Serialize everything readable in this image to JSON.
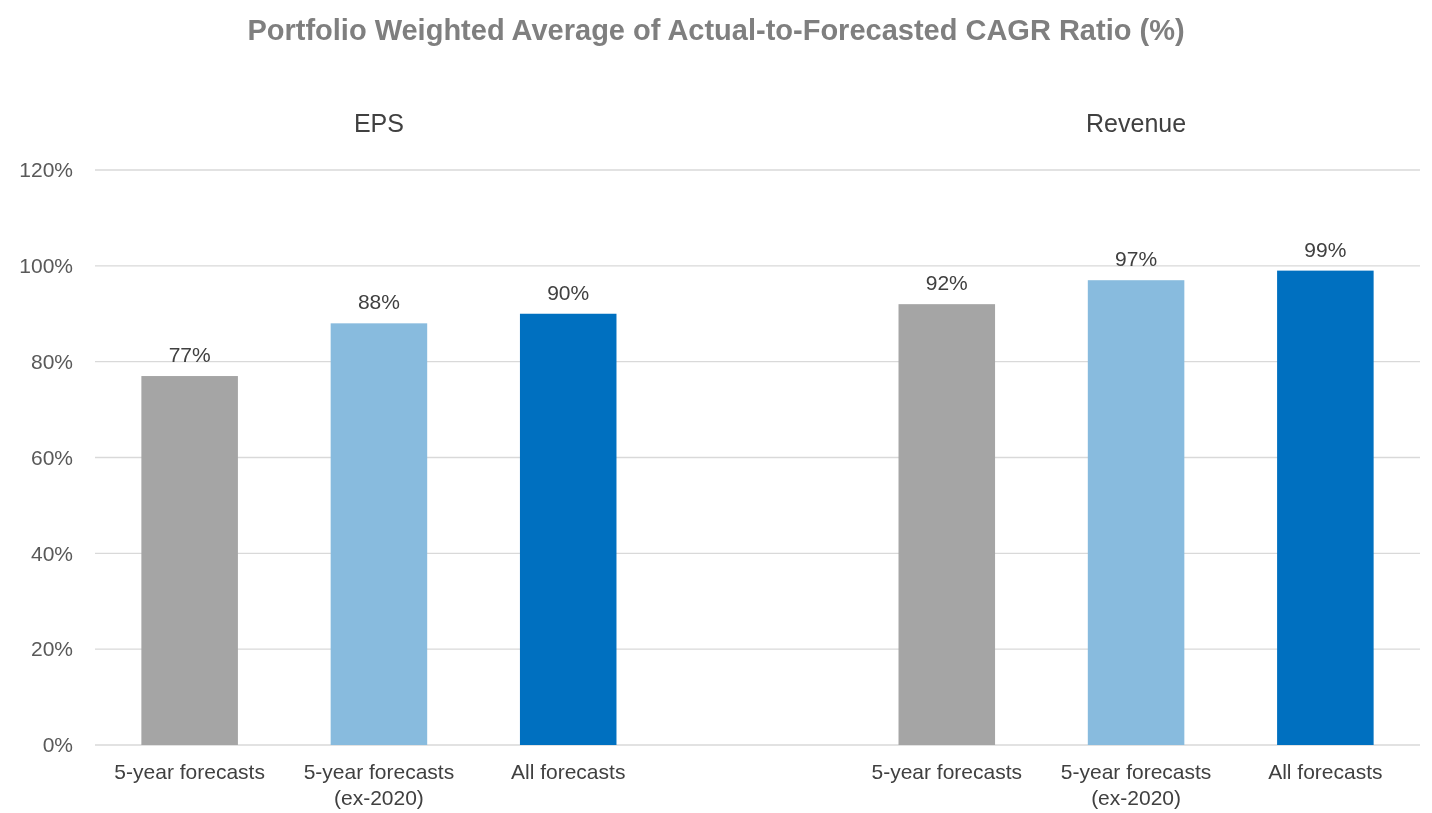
{
  "chart_data": {
    "type": "bar",
    "title": "Portfolio Weighted Average of Actual-to-Forecasted CAGR Ratio (%)",
    "annotations": [
      "EPS",
      "Revenue"
    ],
    "categories": [
      "5-year forecasts",
      "5-year forecasts (ex-2020)",
      "All forecasts",
      null,
      "5-year forecasts",
      "5-year forecasts (ex-2020)",
      "All forecasts"
    ],
    "values": [
      77,
      88,
      90,
      null,
      92,
      97,
      99
    ],
    "colors": [
      "#a5a5a5",
      "#88bbde",
      "#0070c0",
      null,
      "#a5a5a5",
      "#88bbde",
      "#0070c0"
    ],
    "value_labels": [
      "77%",
      "88%",
      "90%",
      null,
      "92%",
      "97%",
      "99%"
    ],
    "ylim": [
      0,
      120
    ],
    "yticks": [
      {
        "value": 0,
        "label": "0%"
      },
      {
        "value": 20,
        "label": "20%"
      },
      {
        "value": 40,
        "label": "40%"
      },
      {
        "value": 60,
        "label": "60%"
      },
      {
        "value": 80,
        "label": "80%"
      },
      {
        "value": 100,
        "label": "100%"
      },
      {
        "value": 120,
        "label": "120%"
      }
    ],
    "grid": "y"
  }
}
